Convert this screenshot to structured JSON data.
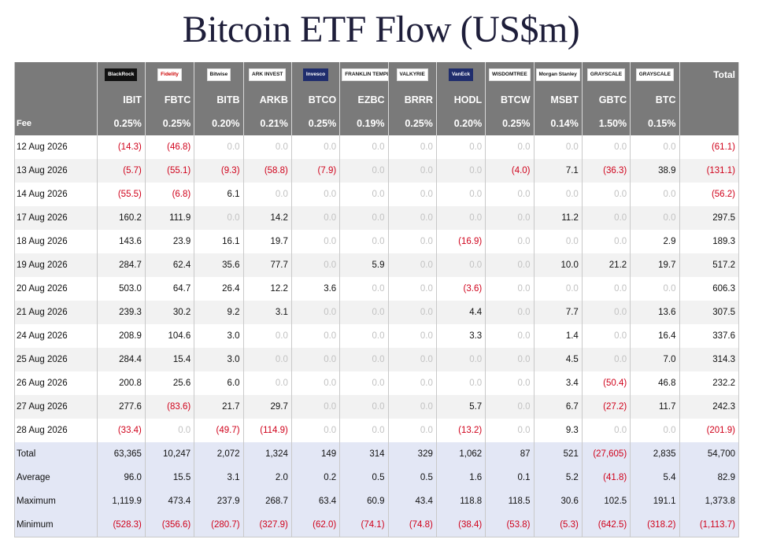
{
  "title": "Bitcoin ETF Flow (US$m)",
  "header": {
    "total_label": "Total",
    "fee_label": "Fee"
  },
  "funds": [
    {
      "logo": "BlackRock",
      "style": "dark",
      "ticker": "IBIT",
      "fee": "0.25%"
    },
    {
      "logo": "Fidelity",
      "style": "red",
      "ticker": "FBTC",
      "fee": "0.25%"
    },
    {
      "logo": "Bitwise",
      "style": "",
      "ticker": "BITB",
      "fee": "0.20%"
    },
    {
      "logo": "ARK INVEST",
      "style": "",
      "ticker": "ARKB",
      "fee": "0.21%"
    },
    {
      "logo": "Invesco",
      "style": "navy",
      "ticker": "BTCO",
      "fee": "0.25%"
    },
    {
      "logo": "FRANKLIN TEMPLETON",
      "style": "",
      "ticker": "EZBC",
      "fee": "0.19%"
    },
    {
      "logo": "VALKYRIE",
      "style": "",
      "ticker": "BRRR",
      "fee": "0.25%"
    },
    {
      "logo": "VanEck",
      "style": "navy",
      "ticker": "HODL",
      "fee": "0.20%"
    },
    {
      "logo": "WISDOMTREE",
      "style": "",
      "ticker": "BTCW",
      "fee": "0.25%"
    },
    {
      "logo": "Morgan Stanley",
      "style": "",
      "ticker": "MSBT",
      "fee": "0.14%"
    },
    {
      "logo": "GRAYSCALE",
      "style": "",
      "ticker": "GBTC",
      "fee": "1.50%"
    },
    {
      "logo": "GRAYSCALE",
      "style": "",
      "ticker": "BTC",
      "fee": "0.15%"
    }
  ],
  "rows": [
    {
      "date": "12 Aug 2026",
      "values": [
        "(14.3)",
        "(46.8)",
        "0.0",
        "0.0",
        "0.0",
        "0.0",
        "0.0",
        "0.0",
        "0.0",
        "0.0",
        "0.0",
        "0.0"
      ],
      "total": "(61.1)"
    },
    {
      "date": "13 Aug 2026",
      "values": [
        "(5.7)",
        "(55.1)",
        "(9.3)",
        "(58.8)",
        "(7.9)",
        "0.0",
        "0.0",
        "0.0",
        "(4.0)",
        "7.1",
        "(36.3)",
        "38.9"
      ],
      "total": "(131.1)"
    },
    {
      "date": "14 Aug 2026",
      "values": [
        "(55.5)",
        "(6.8)",
        "6.1",
        "0.0",
        "0.0",
        "0.0",
        "0.0",
        "0.0",
        "0.0",
        "0.0",
        "0.0",
        "0.0"
      ],
      "total": "(56.2)"
    },
    {
      "date": "17 Aug 2026",
      "values": [
        "160.2",
        "111.9",
        "0.0",
        "14.2",
        "0.0",
        "0.0",
        "0.0",
        "0.0",
        "0.0",
        "11.2",
        "0.0",
        "0.0"
      ],
      "total": "297.5"
    },
    {
      "date": "18 Aug 2026",
      "values": [
        "143.6",
        "23.9",
        "16.1",
        "19.7",
        "0.0",
        "0.0",
        "0.0",
        "(16.9)",
        "0.0",
        "0.0",
        "0.0",
        "2.9"
      ],
      "total": "189.3"
    },
    {
      "date": "19 Aug 2026",
      "values": [
        "284.7",
        "62.4",
        "35.6",
        "77.7",
        "0.0",
        "5.9",
        "0.0",
        "0.0",
        "0.0",
        "10.0",
        "21.2",
        "19.7"
      ],
      "total": "517.2"
    },
    {
      "date": "20 Aug 2026",
      "values": [
        "503.0",
        "64.7",
        "26.4",
        "12.2",
        "3.6",
        "0.0",
        "0.0",
        "(3.6)",
        "0.0",
        "0.0",
        "0.0",
        "0.0"
      ],
      "total": "606.3"
    },
    {
      "date": "21 Aug 2026",
      "values": [
        "239.3",
        "30.2",
        "9.2",
        "3.1",
        "0.0",
        "0.0",
        "0.0",
        "4.4",
        "0.0",
        "7.7",
        "0.0",
        "13.6"
      ],
      "total": "307.5"
    },
    {
      "date": "24 Aug 2026",
      "values": [
        "208.9",
        "104.6",
        "3.0",
        "0.0",
        "0.0",
        "0.0",
        "0.0",
        "3.3",
        "0.0",
        "1.4",
        "0.0",
        "16.4"
      ],
      "total": "337.6"
    },
    {
      "date": "25 Aug 2026",
      "values": [
        "284.4",
        "15.4",
        "3.0",
        "0.0",
        "0.0",
        "0.0",
        "0.0",
        "0.0",
        "0.0",
        "4.5",
        "0.0",
        "7.0"
      ],
      "total": "314.3"
    },
    {
      "date": "26 Aug 2026",
      "values": [
        "200.8",
        "25.6",
        "6.0",
        "0.0",
        "0.0",
        "0.0",
        "0.0",
        "0.0",
        "0.0",
        "3.4",
        "(50.4)",
        "46.8"
      ],
      "total": "232.2"
    },
    {
      "date": "27 Aug 2026",
      "values": [
        "277.6",
        "(83.6)",
        "21.7",
        "29.7",
        "0.0",
        "0.0",
        "0.0",
        "5.7",
        "0.0",
        "6.7",
        "(27.2)",
        "11.7"
      ],
      "total": "242.3"
    },
    {
      "date": "28 Aug 2026",
      "values": [
        "(33.4)",
        "0.0",
        "(49.7)",
        "(114.9)",
        "0.0",
        "0.0",
        "0.0",
        "(13.2)",
        "0.0",
        "9.3",
        "0.0",
        "0.0"
      ],
      "total": "(201.9)"
    }
  ],
  "summary": [
    {
      "label": "Total",
      "values": [
        "63,365",
        "10,247",
        "2,072",
        "1,324",
        "149",
        "314",
        "329",
        "1,062",
        "87",
        "521",
        "(27,605)",
        "2,835"
      ],
      "total": "54,700"
    },
    {
      "label": "Average",
      "values": [
        "96.0",
        "15.5",
        "3.1",
        "2.0",
        "0.2",
        "0.5",
        "0.5",
        "1.6",
        "0.1",
        "5.2",
        "(41.8)",
        "5.4"
      ],
      "total": "82.9"
    },
    {
      "label": "Maximum",
      "values": [
        "1,119.9",
        "473.4",
        "237.9",
        "268.7",
        "63.4",
        "60.9",
        "43.4",
        "118.8",
        "118.5",
        "30.6",
        "102.5",
        "191.1"
      ],
      "total": "1,373.8"
    },
    {
      "label": "Minimum",
      "values": [
        "(528.3)",
        "(356.6)",
        "(280.7)",
        "(327.9)",
        "(62.0)",
        "(74.1)",
        "(74.8)",
        "(38.4)",
        "(53.8)",
        "(5.3)",
        "(642.5)",
        "(318.2)"
      ],
      "total": "(1,113.7)"
    }
  ],
  "colors": {
    "negative": "#d0021b",
    "zero": "#c2c2c2",
    "header_bg": "#7a7a7a",
    "summary_bg": "#e3e7f5"
  }
}
